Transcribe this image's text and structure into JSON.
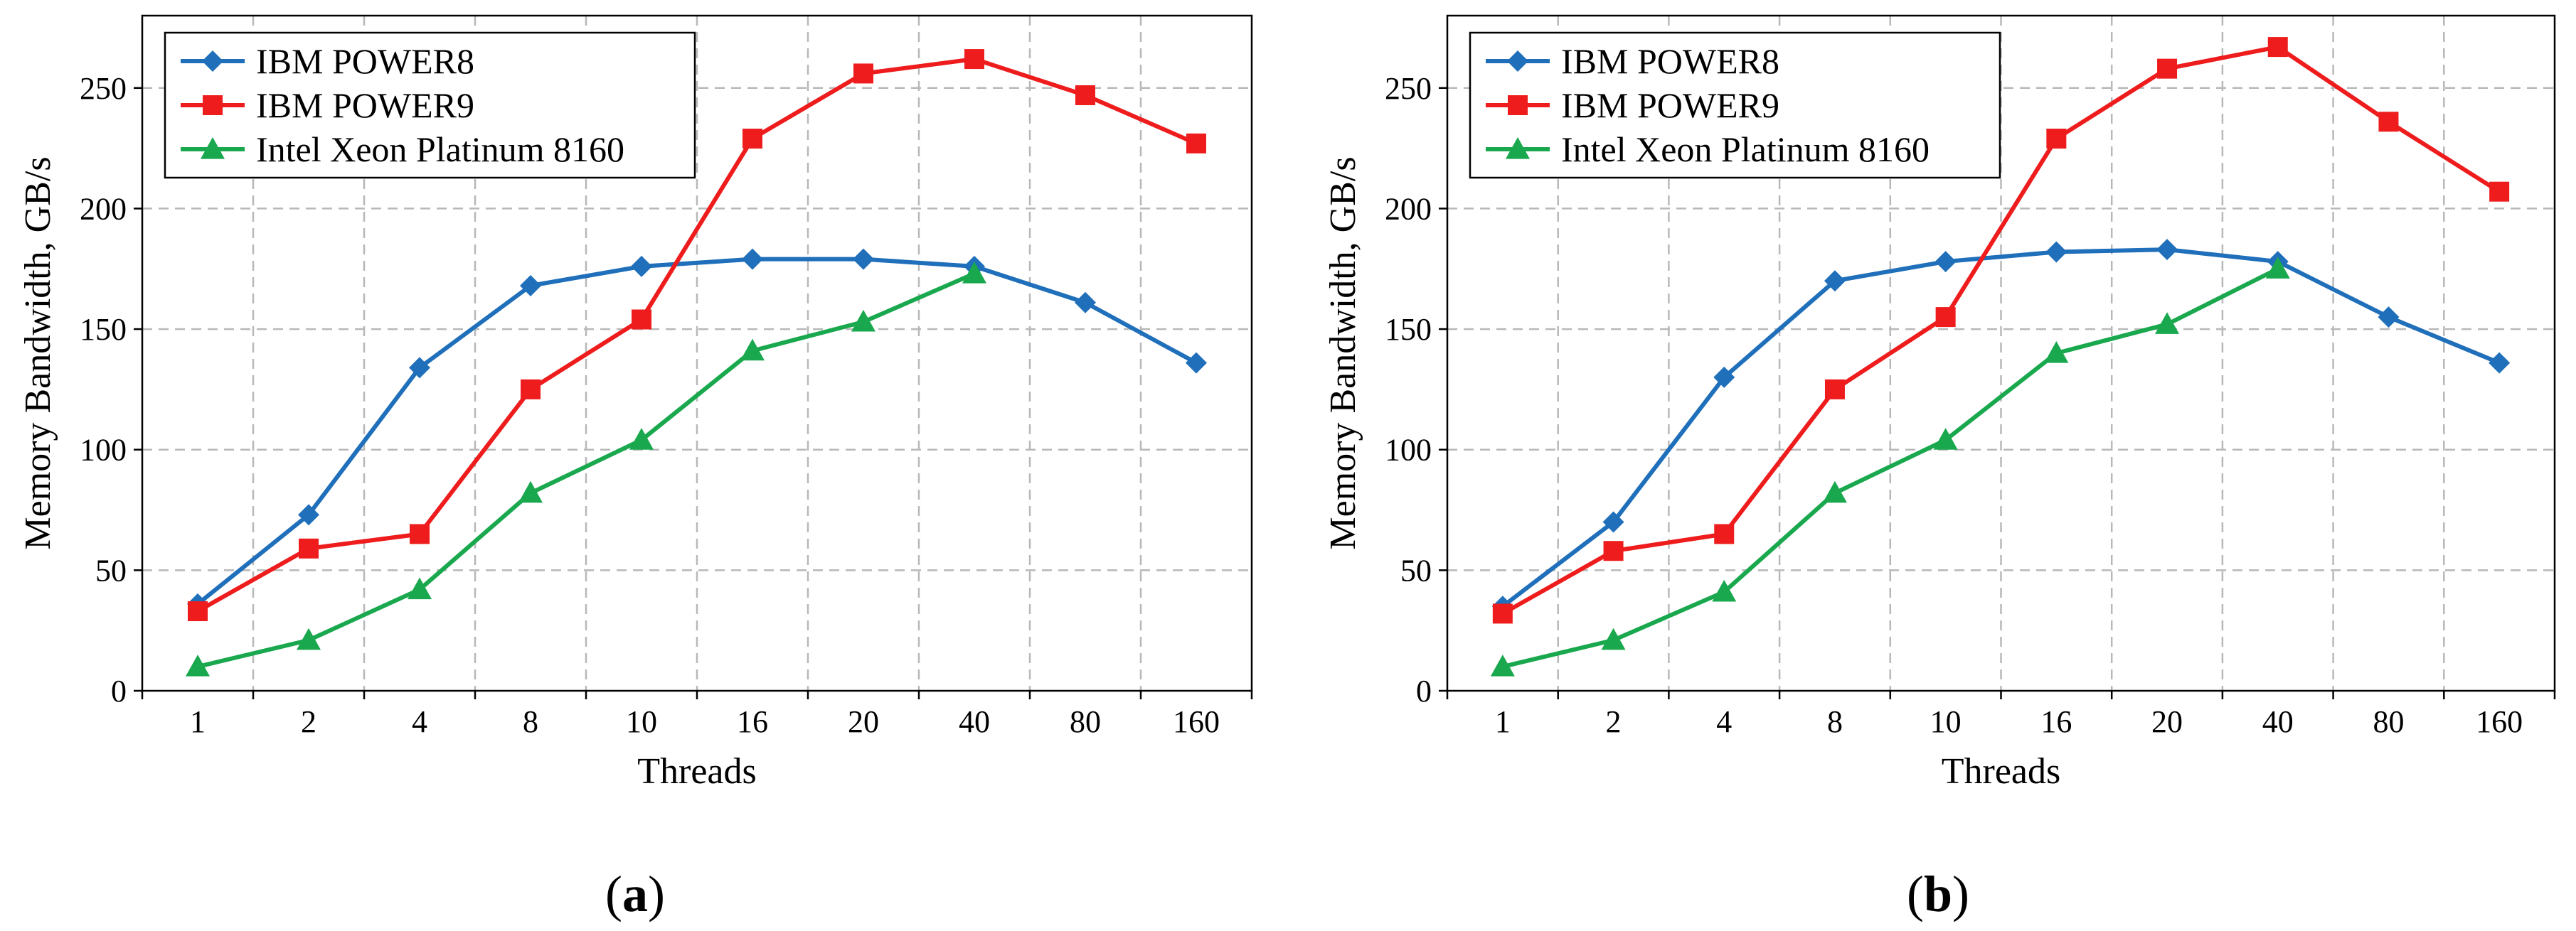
{
  "chart_data": [
    {
      "type": "line",
      "panel_label": "a",
      "title": "",
      "xlabel": "Threads",
      "ylabel": "Memory Bandwidth, GB/s",
      "categories": [
        "1",
        "2",
        "4",
        "8",
        "10",
        "16",
        "20",
        "40",
        "80",
        "160"
      ],
      "ylim": [
        0,
        280
      ],
      "yticks": [
        0,
        50,
        100,
        150,
        200,
        250
      ],
      "grid": true,
      "legend_position": "top-left",
      "series": [
        {
          "name": "IBM POWER8",
          "color": "#1f6fba",
          "marker": "diamond",
          "values": [
            36,
            73,
            134,
            168,
            176,
            179,
            179,
            176,
            161,
            136
          ]
        },
        {
          "name": "IBM POWER9",
          "color": "#ee1c1c",
          "marker": "square",
          "values": [
            33,
            59,
            65,
            125,
            154,
            229,
            256,
            262,
            247,
            227
          ]
        },
        {
          "name": "Intel Xeon Platinum 8160",
          "color": "#19a84e",
          "marker": "triangle",
          "values": [
            10,
            21,
            42,
            82,
            104,
            141,
            153,
            173,
            null,
            null
          ]
        }
      ]
    },
    {
      "type": "line",
      "panel_label": "b",
      "title": "",
      "xlabel": "Threads",
      "ylabel": "Memory Bandwidth, GB/s",
      "categories": [
        "1",
        "2",
        "4",
        "8",
        "10",
        "16",
        "20",
        "40",
        "80",
        "160"
      ],
      "ylim": [
        0,
        280
      ],
      "yticks": [
        0,
        50,
        100,
        150,
        200,
        250
      ],
      "grid": true,
      "legend_position": "top-left",
      "series": [
        {
          "name": "IBM POWER8",
          "color": "#1f6fba",
          "marker": "diamond",
          "values": [
            35,
            70,
            130,
            170,
            178,
            182,
            183,
            178,
            155,
            136
          ]
        },
        {
          "name": "IBM POWER9",
          "color": "#ee1c1c",
          "marker": "square",
          "values": [
            32,
            58,
            65,
            125,
            155,
            229,
            258,
            267,
            236,
            207
          ]
        },
        {
          "name": "Intel Xeon Platinum 8160",
          "color": "#19a84e",
          "marker": "triangle",
          "values": [
            10,
            21,
            41,
            82,
            104,
            140,
            152,
            175,
            null,
            null
          ]
        }
      ]
    }
  ]
}
